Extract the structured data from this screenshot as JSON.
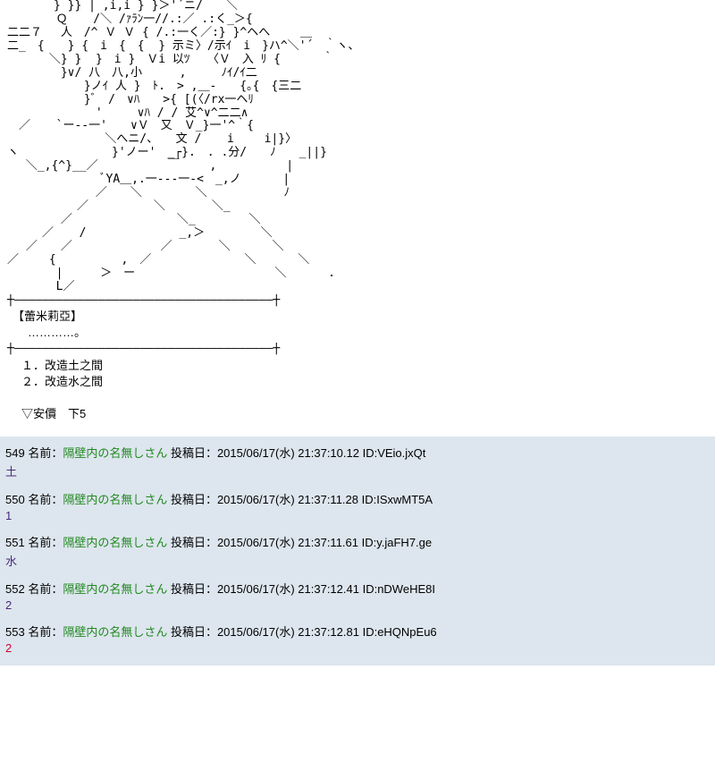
{
  "ascii_art": "　　　　} }} | ,i,i } }＞'´ニ/￣￣＼\n　　 　 Ｑ 　 /＼ /ｧﾗﾝ一//.:／ .:く_＞{\n二二７ 　人　/^ Ｖ Ｖ { /.:一く／:} }^ヘへ　　 ＿\n二_　{　　} {　i　{　{  } 示ミ〉/示ｲ　i　}ハ^＼'´　｀ヽ、\n　　 　＼} }  }　i }　Ｖi 以ﾂ　　〈Ｖ　入 ﾘ {　　 　｀\n　　　 　}∨/ 八　八,小 　　 ,　　　ﾉｲ/ｲ二\n　　　　　 　}ノｲ 人 }　ﾄ.　> ,＿-　　{｡{　{三二\n　　　　　　 }ﾞ　/　∨ﾊ　　>{ [(〈/rx一ヘﾘ\n　　　　　　　 '　　　∨ﾊ / / 艾^∨^二二∧\n　／ 　 `ー--一'　　∨Ｖ　又　Ｖ_}一'^｀{\n　　　 　 　 　 ＼へニ/、　　文 / 　 i　　 i|}〉\nヽ　　　　　　　　}'ノー'　_┌}.　. .分/　　ﾉ　　_||}\n　 ＼_,{^}__／　　　　　　￣　　 ,　　　　　　|\n　　　　　　　　ﾞYA＿,.一---一-<　_,ノ　　　 |\n　　　　　　　 ／　　＼　　　　 ＼　　　　　　 ﾉ\n　　　　　　／　　　　 　＼　　　　＼_\n　　　　 ／　　　　　　　　　＼_　　　　 ＼\n　　　／ 　 /　　　　　　　　_,＞ 　 　 　＼\n　 ／　　／　　　　　　　 ／　　　　＼　　　 ＼\n／　　 {　　　　　 ,　／ 　 　 　 　 　＼　　　 ＼\n　　 　 |　 　 ＞　ー　　　　 　 　 　 　 　＼　　　 .\n　　 　 L／",
  "separator": "┼―――――――――――――――――――――――――――――――――――――┼",
  "character_name": "【蕾米莉亞】",
  "character_line": "　…………。",
  "choices": {
    "c1": "１．改造土之間",
    "c2": "２．改造水之間"
  },
  "anchor_text": "▽安價　下5",
  "replies": [
    {
      "num": "549",
      "poster": "隔壁内の名無しさん",
      "date": "2015/06/17(水) 21:37:10.12",
      "id": "VEio.jxQt",
      "body": "土",
      "red": false
    },
    {
      "num": "550",
      "poster": "隔壁内の名無しさん",
      "date": "2015/06/17(水) 21:37:11.28",
      "id": "ISxwMT5A",
      "body": "1",
      "red": false
    },
    {
      "num": "551",
      "poster": "隔壁内の名無しさん",
      "date": "2015/06/17(水) 21:37:11.61",
      "id": "y.jaFH7.ge",
      "body": "水",
      "red": false
    },
    {
      "num": "552",
      "poster": "隔壁内の名無しさん",
      "date": "2015/06/17(水) 21:37:12.41",
      "id": "nDWeHE8I",
      "body": "2",
      "red": false
    },
    {
      "num": "553",
      "poster": "隔壁内の名無しさん",
      "date": "2015/06/17(水) 21:37:12.81",
      "id": "eHQNpEu6",
      "body": "2",
      "red": true
    }
  ],
  "labels": {
    "name_label": "名前：",
    "post_label": "投稿日：",
    "id_label": "ID:"
  },
  "colors": {
    "reply_bg": "#dde6ee",
    "poster_color": "#228822",
    "body_color": "#4a2a7a",
    "red_color": "#cc0033",
    "page_bg": "#ffffff"
  }
}
